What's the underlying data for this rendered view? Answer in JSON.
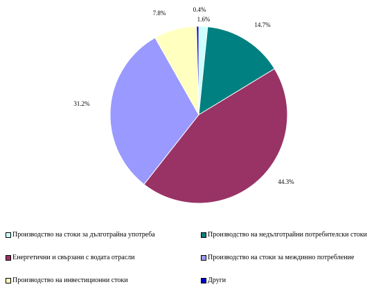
{
  "chart_data": {
    "type": "pie",
    "title": "",
    "slices": [
      {
        "label": "Производство на стоки за дълготрайна употреба",
        "value": 1.6,
        "color": "#ccffff",
        "display": "1.6%"
      },
      {
        "label": "Производство на нeдълготрайни потребителски стоки",
        "value": 14.7,
        "color": "#008080",
        "display": "14.7%"
      },
      {
        "label": "Енергетични и свързани с водата отрасли",
        "value": 44.3,
        "color": "#993366",
        "display": "44.3%"
      },
      {
        "label": "Производство на стоки за междинно потребление",
        "value": 31.2,
        "color": "#9999ff",
        "display": "31.2%"
      },
      {
        "label": "Производство на инвестиционни стоки",
        "value": 7.8,
        "color": "#ffffc0",
        "display": "7.8%"
      },
      {
        "label": "Други",
        "value": 0.4,
        "color": "#0000cc",
        "display": "0.4%"
      }
    ],
    "legend_placement": "bottom"
  }
}
